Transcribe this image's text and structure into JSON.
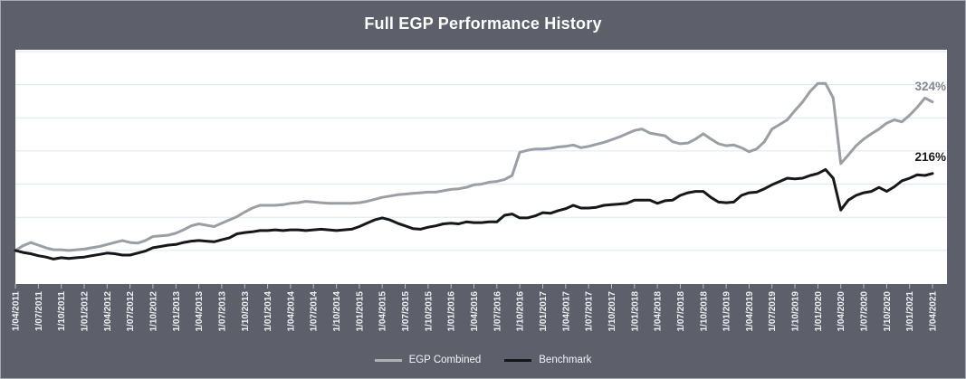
{
  "chart": {
    "title": "Full EGP Performance History"
  },
  "colors": {
    "panel_background": "#5d606b",
    "plot_background": "#ffffff",
    "panel_border": "#a6aab2",
    "gridline": "#dce6f1",
    "tick": "#b9bdc5",
    "title_text": "#ffffff",
    "tick_label_text": "#eef0f3",
    "egp_line": "#9a9ea5",
    "benchmark_line": "#16171a",
    "legend_egp_swatch": "#aeb2b8",
    "legend_benchmark_swatch": "#16171a",
    "end_label_egp": "#85888e",
    "end_label_benchmark": "#17181a"
  },
  "chart_data": {
    "type": "line",
    "title": "Full EGP Performance History",
    "xlabel": "",
    "ylabel": "",
    "grid": "horizontal",
    "legend_position": "bottom",
    "x_range": [
      "1/04/2011",
      "1/04/2021"
    ],
    "frequency": "monthly",
    "ylim": [
      50,
      400
    ],
    "gridline_values": [
      100,
      150,
      200,
      250,
      300,
      350,
      400
    ],
    "y_axis_labels_visible": false,
    "x_tick_labels": [
      "1/04/2011",
      "1/07/2011",
      "1/10/2011",
      "1/01/2012",
      "1/04/2012",
      "1/07/2012",
      "1/10/2012",
      "1/01/2013",
      "1/04/2013",
      "1/07/2013",
      "1/10/2013",
      "1/01/2014",
      "1/04/2014",
      "1/07/2014",
      "1/10/2014",
      "1/01/2015",
      "1/04/2015",
      "1/07/2015",
      "1/10/2015",
      "1/01/2016",
      "1/04/2016",
      "1/07/2016",
      "1/10/2016",
      "1/01/2017",
      "1/04/2017",
      "1/07/2017",
      "1/10/2017",
      "1/01/2018",
      "1/04/2018",
      "1/07/2018",
      "1/10/2018",
      "1/01/2019",
      "1/04/2019",
      "1/07/2019",
      "1/10/2019",
      "1/01/2020",
      "1/04/2020",
      "1/07/2020",
      "1/10/2020",
      "1/01/2021",
      "1/04/2021"
    ],
    "end_labels": {
      "egp": "324%",
      "benchmark": "216%"
    },
    "series": [
      {
        "name": "EGP Combined",
        "color": "#9a9ea5",
        "final_value_pct": 324,
        "values": [
          100,
          107,
          112,
          108,
          104,
          101,
          101,
          100,
          101,
          102,
          104,
          106,
          109,
          112,
          115,
          112,
          111,
          115,
          121,
          122,
          123,
          126,
          131,
          137,
          140,
          138,
          136,
          141,
          146,
          151,
          158,
          164,
          168,
          168,
          168,
          169,
          171,
          172,
          174,
          173,
          172,
          171,
          171,
          171,
          171,
          172,
          174,
          177,
          180,
          182,
          184,
          185,
          186,
          187,
          188,
          188,
          190,
          192,
          193,
          195,
          199,
          200,
          203,
          204,
          207,
          213,
          248,
          251,
          253,
          253,
          254,
          256,
          257,
          259,
          255,
          257,
          260,
          263,
          267,
          271,
          276,
          281,
          283,
          277,
          275,
          273,
          264,
          261,
          262,
          268,
          276,
          268,
          261,
          258,
          259,
          255,
          249,
          253,
          264,
          283,
          290,
          297,
          311,
          324,
          340,
          352,
          352,
          330,
          231,
          244,
          258,
          268,
          276,
          283,
          292,
          297,
          294,
          304,
          316,
          330,
          324
        ]
      },
      {
        "name": "Benchmark",
        "color": "#16171a",
        "final_value_pct": 216,
        "values": [
          100,
          97,
          95,
          92,
          90,
          87,
          89,
          88,
          89,
          90,
          92,
          94,
          96,
          95,
          93,
          93,
          96,
          99,
          104,
          106,
          108,
          109,
          112,
          114,
          115,
          114,
          113,
          116,
          119,
          125,
          127,
          128,
          130,
          130,
          131,
          130,
          131,
          131,
          130,
          131,
          132,
          131,
          130,
          131,
          132,
          136,
          141,
          146,
          149,
          146,
          141,
          137,
          133,
          132,
          135,
          137,
          140,
          141,
          140,
          143,
          142,
          142,
          143,
          143,
          153,
          155,
          149,
          149,
          152,
          157,
          156,
          160,
          163,
          168,
          164,
          164,
          165,
          168,
          169,
          170,
          171,
          176,
          176,
          176,
          171,
          175,
          176,
          183,
          187,
          189,
          189,
          180,
          173,
          172,
          173,
          183,
          187,
          188,
          193,
          199,
          204,
          209,
          208,
          209,
          213,
          216,
          222,
          209,
          161,
          176,
          183,
          187,
          189,
          195,
          189,
          196,
          205,
          209,
          214,
          213,
          216
        ]
      }
    ]
  }
}
